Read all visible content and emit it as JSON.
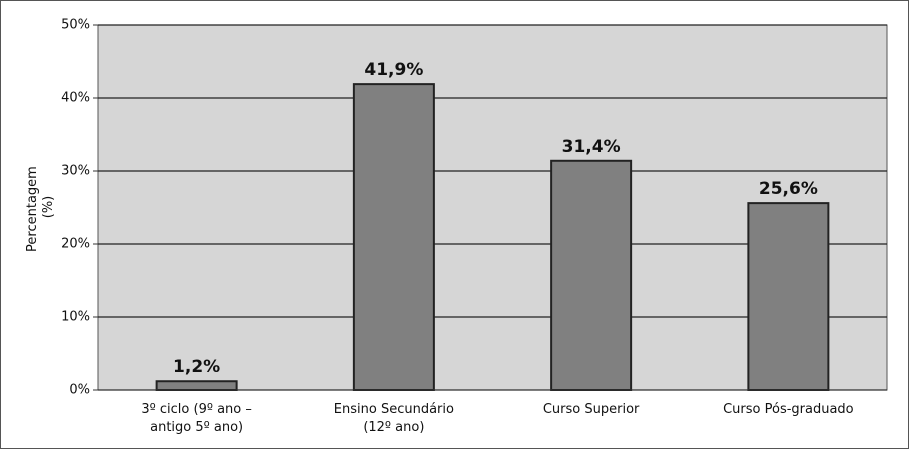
{
  "chart_data": {
    "type": "bar",
    "y_label": [
      "Percentagem",
      "(%)"
    ],
    "categories": [
      [
        "3º ciclo (9º ano –",
        "antigo 5º ano)"
      ],
      [
        "Ensino Secundário",
        "(12º ano)"
      ],
      [
        "Curso Superior"
      ],
      [
        "Curso Pós-graduado"
      ]
    ],
    "values": [
      1.2,
      41.9,
      31.4,
      25.6
    ],
    "value_labels": [
      "1,2%",
      "41,9%",
      "31,4%",
      "25,6%"
    ],
    "color": "#808080",
    "ylim": [
      0,
      50
    ],
    "yticks": [
      {
        "value": 0,
        "label": "0%"
      },
      {
        "value": 10,
        "label": "10%"
      },
      {
        "value": 20,
        "label": "20%"
      },
      {
        "value": 30,
        "label": "30%"
      },
      {
        "value": 40,
        "label": "40%"
      },
      {
        "value": 50,
        "label": "50%"
      }
    ],
    "grid": true
  }
}
